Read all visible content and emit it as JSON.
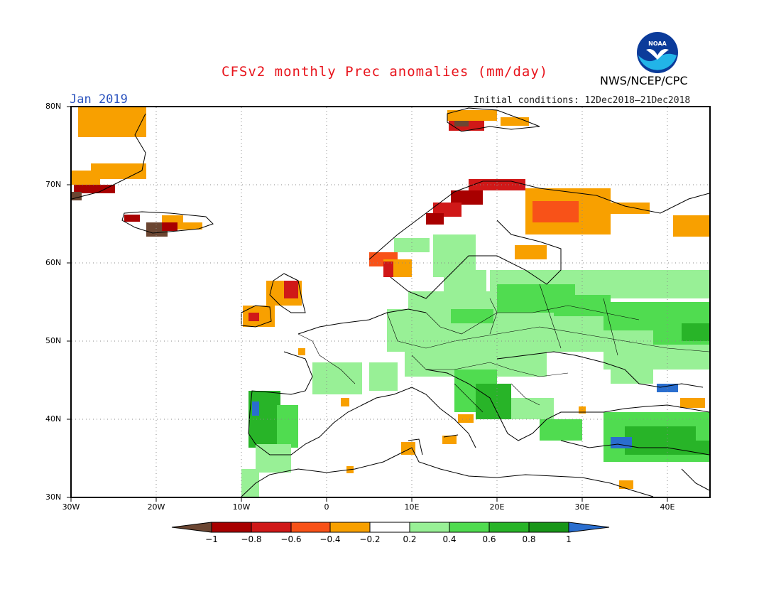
{
  "header": {
    "title": "CFSv2 monthly Prec anomalies (mm/day)",
    "month": "Jan 2019",
    "initial_conditions": "Initial conditions: 12Dec2018–21Dec2018",
    "agency": "NWS/NCEP/CPC",
    "logo_text": "NOAA"
  },
  "axes": {
    "lat_labels": [
      "80N",
      "70N",
      "60N",
      "50N",
      "40N",
      "30N"
    ],
    "lon_labels": [
      "30W",
      "20W",
      "10W",
      "0",
      "10E",
      "20E",
      "30E",
      "40E"
    ]
  },
  "colorbar": {
    "labels": [
      "−1",
      "−0.8",
      "−0.6",
      "−0.4",
      "−0.2",
      "0.2",
      "0.4",
      "0.6",
      "0.8",
      "1"
    ],
    "colors": [
      "#6b4632",
      "#a80000",
      "#d01818",
      "#f85218",
      "#f8a000",
      "#ffffff",
      "#98f096",
      "#50dc50",
      "#28b428",
      "#189618",
      "#2a6ecf"
    ]
  },
  "anomaly_regions": [
    {
      "name": "greenland-east",
      "level": -0.4
    },
    {
      "name": "greenland-south",
      "level": -0.8
    },
    {
      "name": "iceland",
      "level": -1.0
    },
    {
      "name": "svalbard",
      "level": -0.4
    },
    {
      "name": "norway-coast",
      "level": -0.8
    },
    {
      "name": "finland-russia-north",
      "level": -0.6
    },
    {
      "name": "britain-ireland",
      "level": -0.4
    },
    {
      "name": "central-eastern-europe",
      "level": 0.4
    },
    {
      "name": "iberia-west",
      "level": 0.8
    },
    {
      "name": "balkans",
      "level": 0.6
    },
    {
      "name": "turkey",
      "level": 0.6
    },
    {
      "name": "caucasus",
      "level": 1.0
    }
  ]
}
